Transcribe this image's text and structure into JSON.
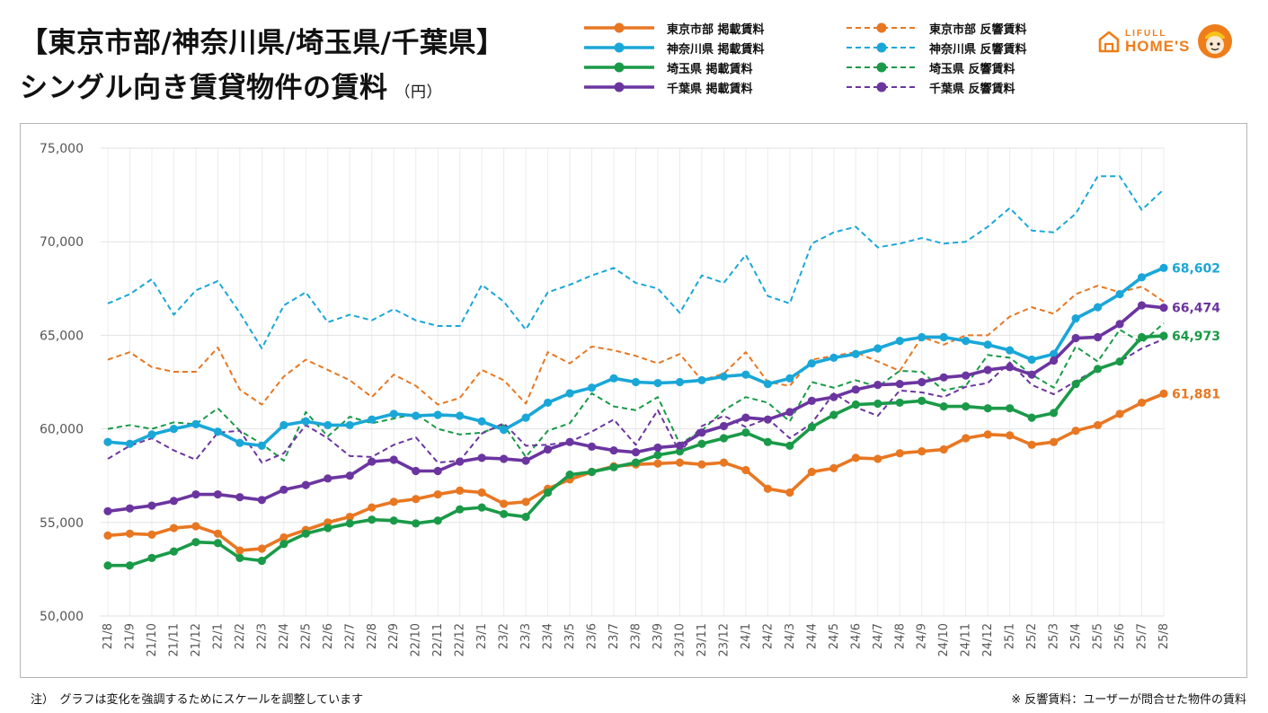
{
  "header": {
    "title_line1": "【東京市部/神奈川県/埼玉県/千葉県】",
    "title_line2": "シングル向き賃貸物件の賃料",
    "unit": "（円）"
  },
  "brand": {
    "line1": "LIFULL",
    "line2": "HOME'S",
    "logo_icon": "house-icon",
    "mascot_icon": "mascot-icon"
  },
  "footer": {
    "note_left": "注）　グラフは変化を強調するためにスケールを調整しています",
    "note_right": "※ 反響賃料：ユーザーが問合せた物件の賃料"
  },
  "chart_data": {
    "type": "line",
    "ylim": [
      50000,
      75000
    ],
    "yticks": [
      50000,
      55000,
      60000,
      65000,
      70000,
      75000
    ],
    "ytick_labels": [
      "50,000",
      "55,000",
      "60,000",
      "65,000",
      "70,000",
      "75,000"
    ],
    "grid": true,
    "legend_position": "top",
    "x": [
      "21/8",
      "21/9",
      "21/10",
      "21/11",
      "21/12",
      "22/1",
      "22/2",
      "22/3",
      "22/4",
      "22/5",
      "22/6",
      "22/7",
      "22/8",
      "22/9",
      "22/10",
      "22/11",
      "22/12",
      "23/1",
      "23/2",
      "23/3",
      "23/4",
      "23/5",
      "23/6",
      "23/7",
      "23/8",
      "23/9",
      "23/10",
      "23/11",
      "23/12",
      "24/1",
      "24/2",
      "24/3",
      "24/4",
      "24/5",
      "24/6",
      "24/7",
      "24/8",
      "24/9",
      "24/10",
      "24/11",
      "24/12",
      "25/1",
      "25/2",
      "25/3",
      "25/4",
      "25/5",
      "25/6",
      "25/7",
      "25/8"
    ],
    "series": [
      {
        "name": "東京市部 掲載賃料",
        "color": "#e87722",
        "style": "solid",
        "end_label": "61,881",
        "values": [
          54300,
          54400,
          54350,
          54700,
          54800,
          54400,
          53500,
          53600,
          54200,
          54600,
          55000,
          55300,
          55800,
          56100,
          56250,
          56500,
          56700,
          56600,
          56000,
          56100,
          56800,
          57300,
          57700,
          58000,
          58100,
          58150,
          58200,
          58100,
          58200,
          57800,
          56800,
          56600,
          57700,
          57900,
          58450,
          58400,
          58700,
          58800,
          58900,
          59500,
          59700,
          59650,
          59150,
          59300,
          59900,
          60200,
          60800,
          61400,
          61881
        ]
      },
      {
        "name": "神奈川県 掲載賃料",
        "color": "#1aa7d8",
        "style": "solid",
        "end_label": "68,602",
        "values": [
          59300,
          59200,
          59700,
          60000,
          60250,
          59850,
          59250,
          59100,
          60200,
          60400,
          60200,
          60200,
          60500,
          60800,
          60700,
          60750,
          60700,
          60400,
          59950,
          60600,
          61400,
          61900,
          62200,
          62700,
          62500,
          62450,
          62500,
          62600,
          62800,
          62900,
          62400,
          62700,
          63500,
          63800,
          64000,
          64300,
          64700,
          64900,
          64900,
          64700,
          64500,
          64200,
          63700,
          64000,
          65900,
          66500,
          67200,
          68100,
          68602
        ]
      },
      {
        "name": "埼玉県 掲載賃料",
        "color": "#1a9a48",
        "style": "solid",
        "end_label": "64,973",
        "values": [
          52700,
          52700,
          53100,
          53450,
          53950,
          53900,
          53100,
          52950,
          53850,
          54400,
          54700,
          54950,
          55150,
          55100,
          54950,
          55100,
          55700,
          55800,
          55450,
          55300,
          56600,
          57550,
          57700,
          57950,
          58200,
          58600,
          58800,
          59200,
          59500,
          59800,
          59300,
          59100,
          60100,
          60750,
          61300,
          61350,
          61400,
          61500,
          61200,
          61200,
          61100,
          61100,
          60600,
          60850,
          62400,
          63200,
          63600,
          64900,
          64973
        ]
      },
      {
        "name": "千葉県 掲載賃料",
        "color": "#6b35a0",
        "style": "solid",
        "end_label": "66,474",
        "values": [
          55600,
          55750,
          55900,
          56150,
          56500,
          56500,
          56350,
          56200,
          56750,
          57000,
          57350,
          57500,
          58250,
          58350,
          57750,
          57750,
          58250,
          58450,
          58400,
          58300,
          58900,
          59300,
          59050,
          58850,
          58750,
          59000,
          59100,
          59800,
          60150,
          60600,
          60500,
          60900,
          61500,
          61700,
          62100,
          62350,
          62400,
          62500,
          62750,
          62850,
          63150,
          63300,
          62900,
          63650,
          64850,
          64900,
          65600,
          66600,
          66474
        ]
      },
      {
        "name": "東京市部 反響賃料",
        "color": "#e87722",
        "style": "dashed",
        "values": [
          63700,
          64100,
          63300,
          63050,
          63050,
          64350,
          62100,
          61300,
          62800,
          63700,
          63150,
          62600,
          61700,
          62900,
          62300,
          61300,
          61650,
          63150,
          62600,
          61350,
          64100,
          63500,
          64400,
          64200,
          63900,
          63500,
          64000,
          62600,
          62950,
          64100,
          62500,
          62300,
          63700,
          63900,
          64100,
          63600,
          63100,
          64900,
          64500,
          65000,
          65000,
          66000,
          66500,
          66150,
          67200,
          67650,
          67300,
          67600,
          66800
        ]
      },
      {
        "name": "神奈川県 反響賃料",
        "color": "#1aa7d8",
        "style": "dashed",
        "values": [
          66700,
          67200,
          68000,
          66100,
          67400,
          67900,
          66200,
          64300,
          66600,
          67300,
          65700,
          66100,
          65800,
          66400,
          65800,
          65500,
          65500,
          67700,
          66800,
          65300,
          67300,
          67700,
          68200,
          68600,
          67800,
          67500,
          66200,
          68200,
          67800,
          69300,
          67100,
          66700,
          69900,
          70500,
          70800,
          69700,
          69900,
          70200,
          69900,
          70000,
          70800,
          71800,
          70600,
          70500,
          71500,
          73500,
          73500,
          71700,
          72800
        ]
      },
      {
        "name": "埼玉県 反響賃料",
        "color": "#1a9a48",
        "style": "dashed",
        "values": [
          60000,
          60200,
          60000,
          60350,
          60250,
          61100,
          59900,
          59200,
          58300,
          60900,
          59600,
          60650,
          60300,
          60550,
          60800,
          60000,
          59700,
          59800,
          60200,
          58500,
          59900,
          60300,
          61900,
          61200,
          61000,
          61700,
          59200,
          59900,
          61000,
          61700,
          61400,
          60400,
          62500,
          62200,
          62600,
          62250,
          63100,
          63050,
          62050,
          62300,
          63950,
          63800,
          62900,
          62200,
          64400,
          63600,
          65300,
          64600,
          65650
        ]
      },
      {
        "name": "千葉県 反響賃料",
        "color": "#6b35a0",
        "style": "dashed",
        "values": [
          58400,
          59100,
          59500,
          58850,
          58350,
          59800,
          59900,
          58200,
          58700,
          60200,
          59500,
          58550,
          58500,
          59150,
          59550,
          58200,
          58300,
          59750,
          60300,
          59100,
          59150,
          59300,
          59850,
          60500,
          59150,
          61000,
          58750,
          60150,
          60700,
          60100,
          60550,
          59500,
          60300,
          61900,
          61150,
          60700,
          62050,
          61950,
          61700,
          62250,
          62450,
          63550,
          62350,
          61850,
          62550,
          63200,
          63600,
          64300,
          64800
        ]
      }
    ]
  }
}
